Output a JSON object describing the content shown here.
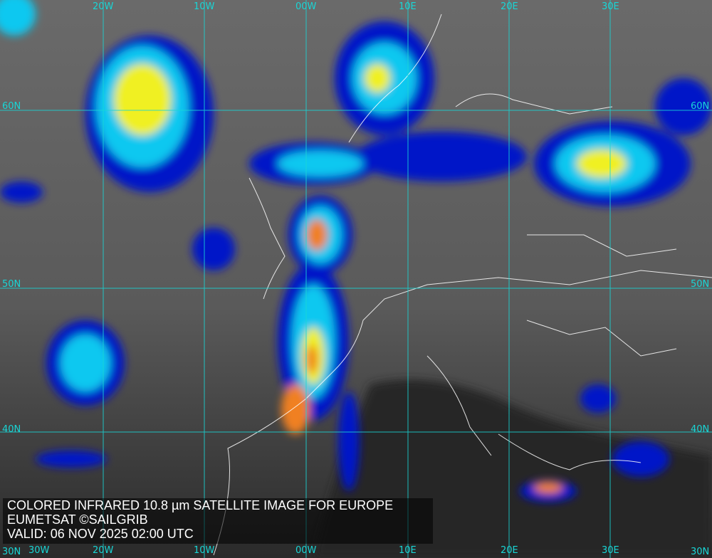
{
  "caption": {
    "title": "COLORED INFRARED 10.8 µm SATELLITE IMAGE FOR EUROPE",
    "credit": "EUMETSAT ©SAILGRIB",
    "valid": "VALID:  06 NOV 2025 02:00 UTC"
  },
  "grid": {
    "color": "#19d6d6",
    "top_labels": [
      "20W",
      "10W",
      "00W",
      "10E",
      "20E",
      "30E"
    ],
    "bottom_labels": [
      "30W",
      "20W",
      "10W",
      "00W",
      "10E",
      "20E",
      "30E"
    ],
    "left_labels": [
      "60N",
      "50N",
      "40N",
      "30N"
    ],
    "right_labels": [
      "60N",
      "50N",
      "40N",
      "30N"
    ]
  },
  "colors": {
    "cold_cloud_blue": "#0018c8",
    "cyan": "#10c8f0",
    "yellow": "#f0f020",
    "orange": "#f08020",
    "land_border": "#ffffff"
  }
}
